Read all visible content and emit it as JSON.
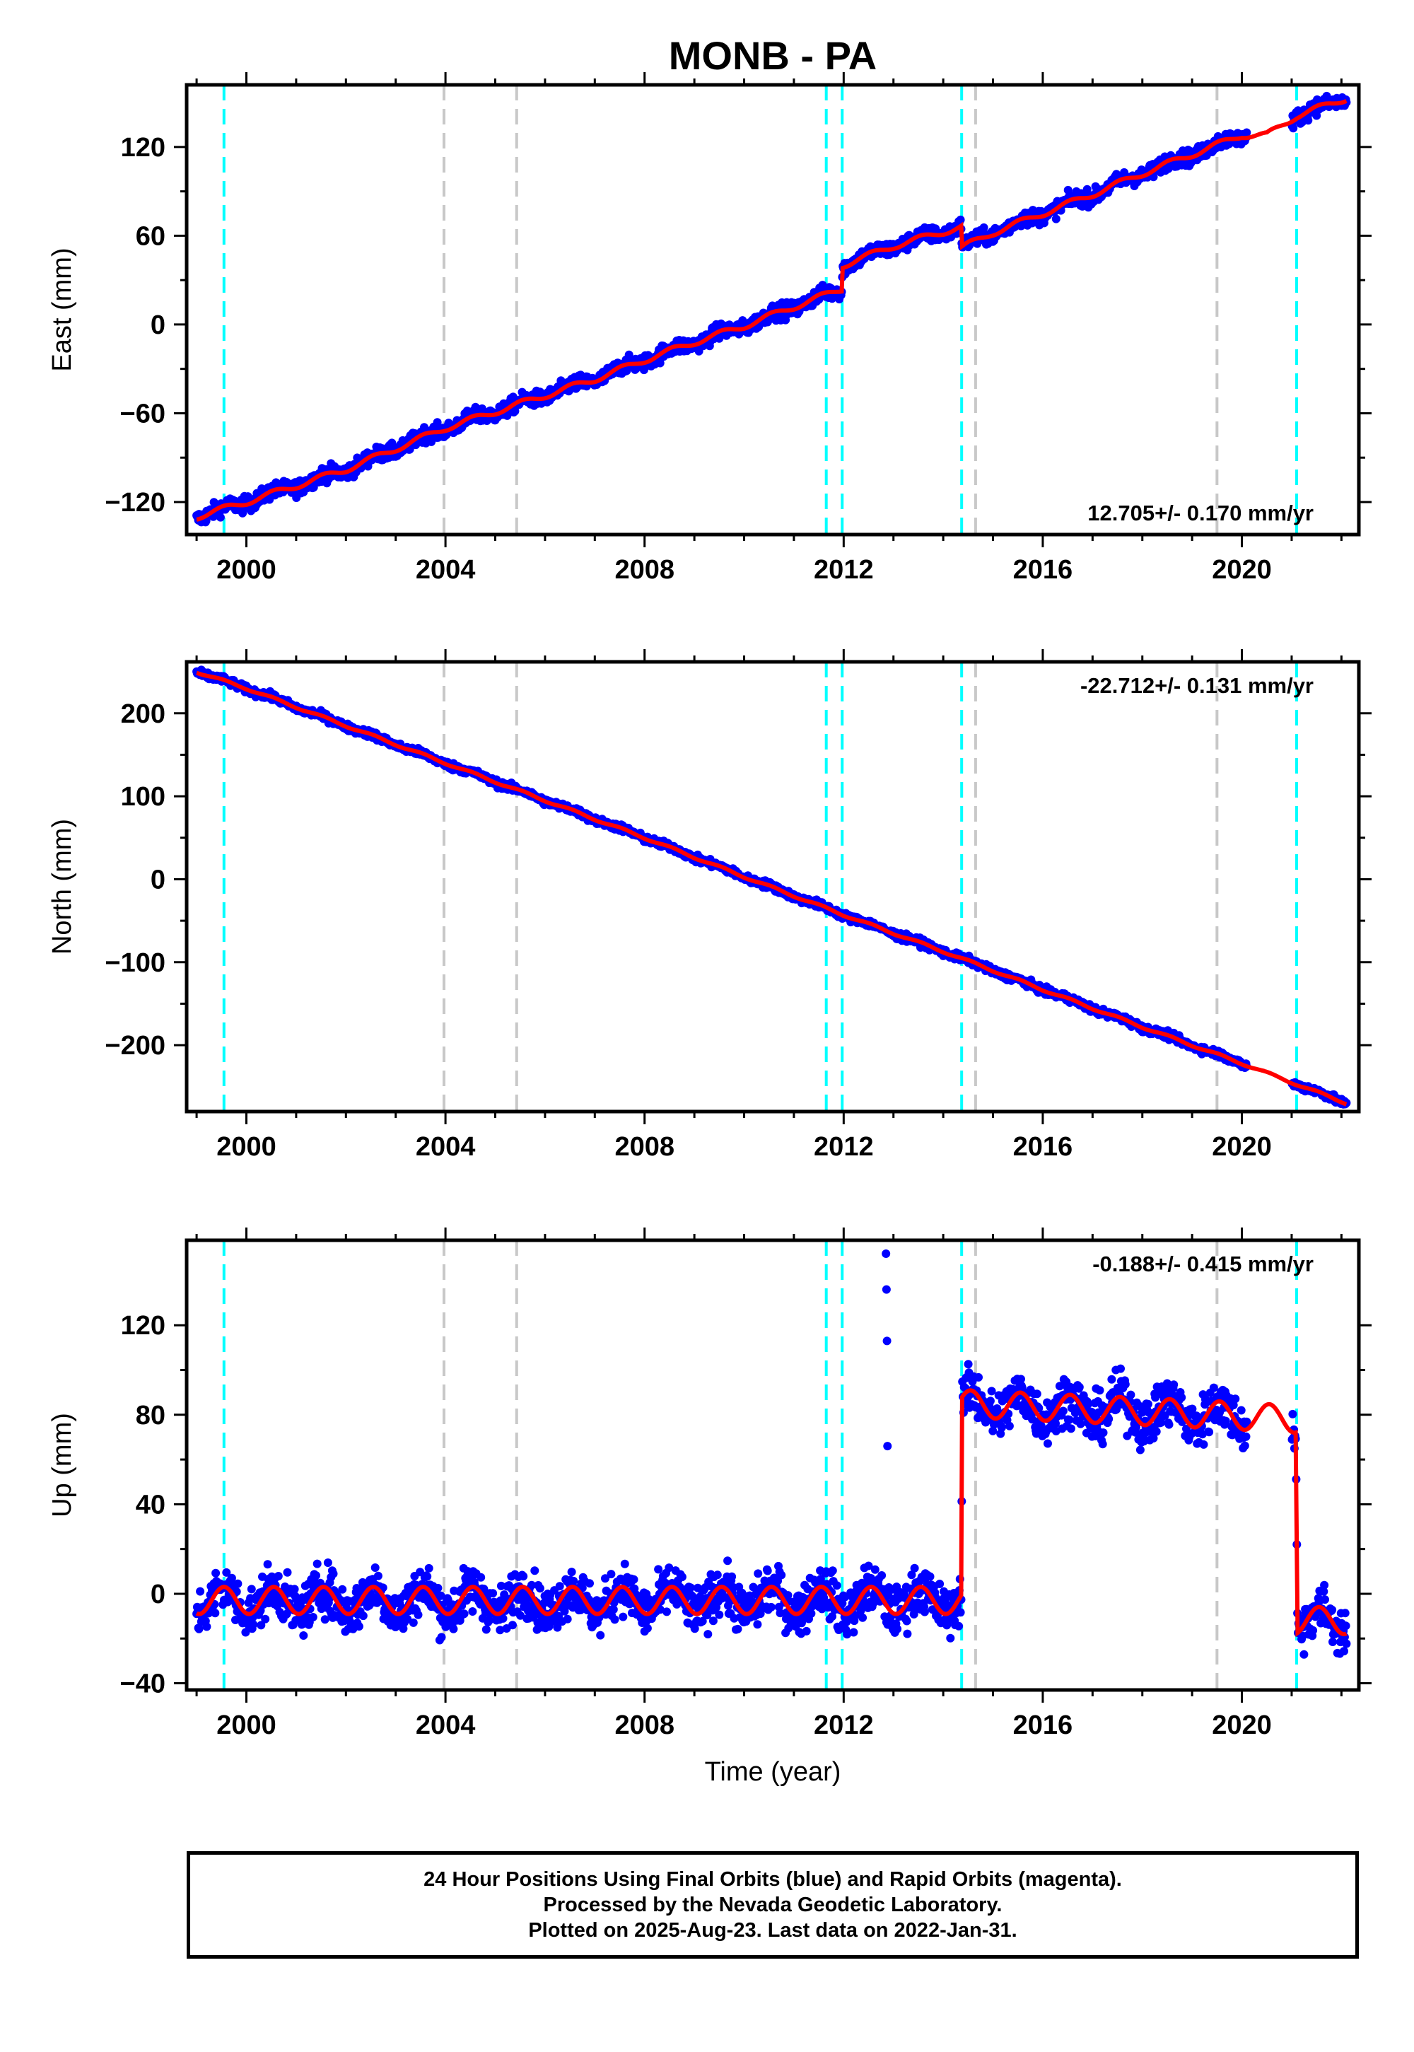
{
  "title": "MONB - PA",
  "colors": {
    "data": "#0000ff",
    "model": "#ff0000",
    "equipment_change": "#00ffff",
    "other_event": "#c8c8c8"
  },
  "x_axis": {
    "label": "Time (year)",
    "range": [
      1998.8,
      2022.35
    ],
    "major_ticks": [
      2000,
      2004,
      2008,
      2012,
      2016,
      2020
    ],
    "tick_labels": [
      "2000",
      "2004",
      "2008",
      "2012",
      "2016",
      "2020"
    ],
    "minor_ticks": [
      1999,
      2001,
      2002,
      2003,
      2005,
      2006,
      2007,
      2009,
      2010,
      2011,
      2013,
      2014,
      2015,
      2017,
      2018,
      2019,
      2021,
      2022
    ]
  },
  "event_lines": {
    "cyan": [
      1999.55,
      2011.65,
      2011.97,
      2014.37,
      2021.1
    ],
    "gray": [
      2003.97,
      2005.43,
      2014.65,
      2019.5
    ]
  },
  "chart_data": [
    {
      "type": "scatter",
      "panel": "east",
      "ylabel": "East (mm)",
      "ylim": [
        -142,
        162
      ],
      "yticks": [
        -120,
        -60,
        0,
        60,
        120
      ],
      "ytick_labels": [
        "−120",
        "−60",
        "0",
        "60",
        "120"
      ],
      "rate_text": "12.705+/- 0.170 mm/yr",
      "series": [
        {
          "name": "Final Orbits",
          "style": "points",
          "x": [
            1999.0,
            2000.0,
            2001.0,
            2002.0,
            2003.0,
            2004.0,
            2005.0,
            2006.0,
            2007.0,
            2008.0,
            2009.0,
            2010.0,
            2011.0,
            2011.96,
            2011.98,
            2013.0,
            2014.36,
            2014.38,
            2015.0,
            2016.0,
            2017.0,
            2018.0,
            2019.0,
            2020.0,
            2020.5,
            2021.1,
            2022.1
          ],
          "y": [
            -130,
            -120,
            -109,
            -98,
            -84,
            -70,
            -59,
            -48,
            -37,
            -24,
            -12,
            -1,
            12,
            24,
            40,
            53,
            66,
            52,
            62,
            75,
            88,
            102,
            115,
            128,
            128,
            141,
            153
          ]
        }
      ]
    },
    {
      "type": "scatter",
      "panel": "north",
      "ylabel": "North (mm)",
      "ylim": [
        -280,
        262
      ],
      "yticks": [
        -200,
        -100,
        0,
        100,
        200
      ],
      "ytick_labels": [
        "−200",
        "−100",
        "0",
        "100",
        "200"
      ],
      "rate_text": "-22.712+/- 0.131 mm/yr",
      "series": [
        {
          "name": "Final Orbits",
          "style": "points",
          "x": [
            1999.0,
            2000.0,
            2002.0,
            2004.0,
            2006.0,
            2008.0,
            2010.0,
            2012.0,
            2014.0,
            2016.0,
            2018.0,
            2020.0,
            2022.1
          ],
          "y": [
            250,
            230,
            185,
            140,
            95,
            50,
            3,
            -43,
            -87,
            -133,
            -178,
            -222,
            -270
          ]
        }
      ]
    },
    {
      "type": "scatter",
      "panel": "up",
      "ylabel": "Up (mm)",
      "ylim": [
        -43,
        158
      ],
      "yticks": [
        -40,
        0,
        40,
        80,
        120
      ],
      "ytick_labels": [
        "−40",
        "0",
        "40",
        "80",
        "120"
      ],
      "rate_text": "-0.188+/- 0.415 mm/yr",
      "series": [
        {
          "name": "Final Orbits",
          "style": "points",
          "x": [
            1999.0,
            2014.36,
            2014.38,
            2019.5,
            2021.08,
            2021.12,
            2022.1
          ],
          "y": [
            -3,
            -3,
            85,
            80,
            78,
            -12,
            -12
          ]
        },
        {
          "name": "Outliers",
          "style": "points",
          "x": [
            2012.85,
            2012.86,
            2012.87,
            2012.88
          ],
          "y": [
            152,
            136,
            113,
            66
          ]
        }
      ]
    }
  ],
  "footer": {
    "line1": "24 Hour Positions Using Final Orbits (blue) and Rapid Orbits (magenta).",
    "line2": "Processed by the Nevada Geodetic Laboratory.",
    "line3": "Plotted on 2025-Aug-23. Last data on 2022-Jan-31."
  }
}
